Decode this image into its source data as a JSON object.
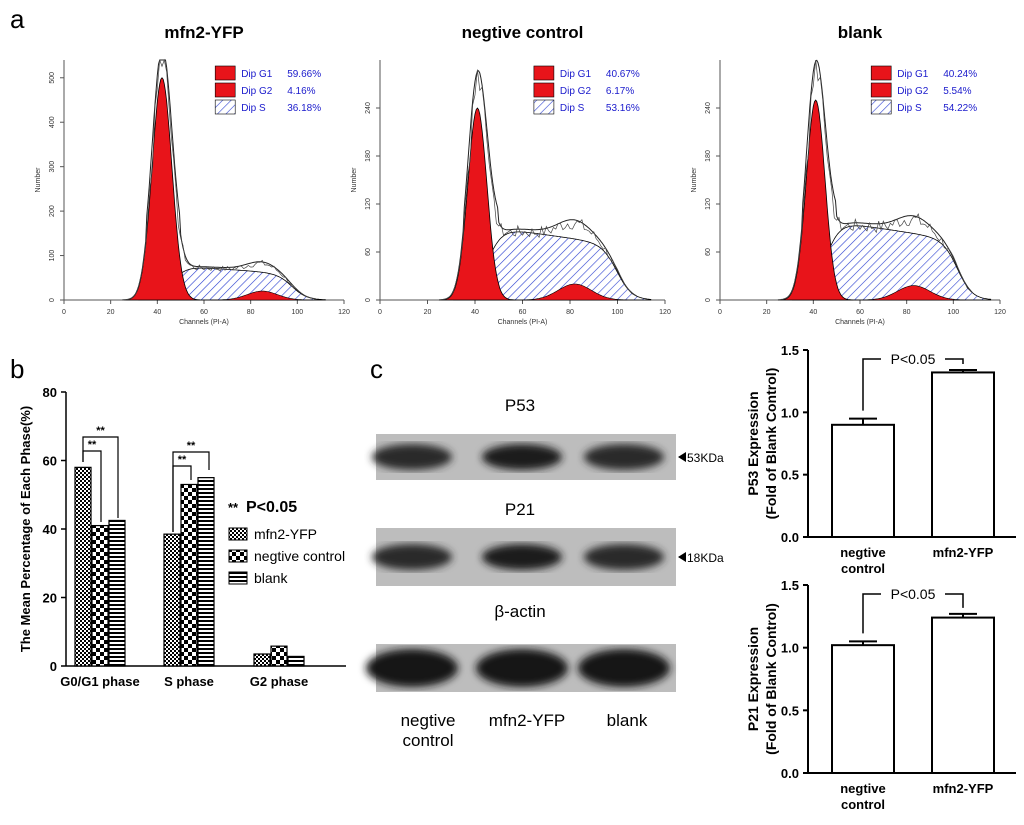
{
  "panel_labels": {
    "a": "a",
    "b": "b",
    "c": "c"
  },
  "chart_data": [
    {
      "type": "histogram",
      "panel": "a1",
      "title": "mfn2-YFP",
      "xlabel": "Channels (PI-A)",
      "ylabel": "Number",
      "xlim": [
        0,
        120
      ],
      "xticks": [
        "0",
        "20",
        "40",
        "60",
        "80",
        "100",
        "120"
      ],
      "ylim": [
        0,
        540
      ],
      "yticks": [
        "0",
        "100",
        "200",
        "300",
        "400",
        "500"
      ],
      "ytick_values": [
        0,
        100,
        200,
        300,
        400,
        500
      ],
      "g1": {
        "mean": 42,
        "sd": 4.2,
        "peak": 500
      },
      "g2": {
        "mean": 85,
        "sd": 6.5,
        "peak": 20
      },
      "s": {
        "start": 46,
        "end": 98,
        "level": 78
      },
      "legend": [
        {
          "label": "Dip G1",
          "value": "59.66%",
          "fill": "#e8141a"
        },
        {
          "label": "Dip G2",
          "value": "4.16%",
          "fill": "#e8141a"
        },
        {
          "label": "Dip S",
          "value": "36.18%",
          "fill": "hatch"
        }
      ]
    },
    {
      "type": "histogram",
      "panel": "a2",
      "title": "negtive control",
      "xlabel": "Channels (PI-A)",
      "ylabel": "Number",
      "xlim": [
        0,
        120
      ],
      "xticks": [
        "0",
        "20",
        "40",
        "60",
        "80",
        "100",
        "120"
      ],
      "ylim": [
        0,
        300
      ],
      "yticks": [
        "0",
        "60",
        "120",
        "180",
        "240"
      ],
      "ytick_values": [
        0,
        60,
        120,
        180,
        240
      ],
      "g1": {
        "mean": 41,
        "sd": 4.0,
        "peak": 240
      },
      "g2": {
        "mean": 82,
        "sd": 7.0,
        "peak": 20
      },
      "s": {
        "start": 45,
        "end": 100,
        "level": 92
      },
      "legend": [
        {
          "label": "Dip G1",
          "value": "40.67%",
          "fill": "#e8141a"
        },
        {
          "label": "Dip G2",
          "value": "6.17%",
          "fill": "#e8141a"
        },
        {
          "label": "Dip S",
          "value": "53.16%",
          "fill": "hatch"
        }
      ]
    },
    {
      "type": "histogram",
      "panel": "a3",
      "title": "blank",
      "xlabel": "Channels (PI-A)",
      "ylabel": "Number",
      "xlim": [
        0,
        120
      ],
      "xticks": [
        "0",
        "20",
        "40",
        "60",
        "80",
        "100",
        "120"
      ],
      "ylim": [
        0,
        300
      ],
      "yticks": [
        "0",
        "60",
        "120",
        "180",
        "240"
      ],
      "ytick_values": [
        0,
        60,
        120,
        180,
        240
      ],
      "g1": {
        "mean": 41,
        "sd": 4.0,
        "peak": 250
      },
      "g2": {
        "mean": 83,
        "sd": 7.0,
        "peak": 18
      },
      "s": {
        "start": 45,
        "end": 102,
        "level": 100
      },
      "legend": [
        {
          "label": "Dip G1",
          "value": "40.24%",
          "fill": "#e8141a"
        },
        {
          "label": "Dip G2",
          "value": "5.54%",
          "fill": "#e8141a"
        },
        {
          "label": "Dip S",
          "value": "54.22%",
          "fill": "hatch"
        }
      ]
    },
    {
      "type": "bar",
      "panel": "b",
      "ylabel": "The Mean Percentage of Each Phase(%)",
      "ylim": [
        0,
        80
      ],
      "yticks": [
        "0",
        "20",
        "40",
        "60",
        "80"
      ],
      "ytick_values": [
        0,
        20,
        40,
        60,
        80
      ],
      "categories": [
        "G0/G1 phase",
        "S phase",
        "G2 phase"
      ],
      "series": [
        {
          "name": "mfn2-YFP",
          "values": [
            58,
            38.5,
            3.5
          ]
        },
        {
          "name": "negtive control",
          "values": [
            41,
            53,
            5.8
          ]
        },
        {
          "name": "blank",
          "values": [
            42.5,
            55,
            2.8
          ]
        }
      ],
      "significance": "**",
      "legend_note": {
        "marker": "**",
        "text": "P<0.05"
      }
    },
    {
      "type": "bar",
      "panel": "c-top",
      "ylabel": "P53 Expression",
      "ylabel2": "(Fold of Blank Control)",
      "ylim": [
        0,
        1.5
      ],
      "yticks": [
        "0.0",
        "0.5",
        "1.0",
        "1.5"
      ],
      "ytick_values": [
        0,
        0.5,
        1.0,
        1.5
      ],
      "categories": [
        [
          "negtive",
          "control"
        ],
        [
          "mfn2-YFP"
        ]
      ],
      "values": [
        0.9,
        1.32
      ],
      "errors": [
        0.05,
        0.02
      ],
      "annotation": "P<0.05"
    },
    {
      "type": "bar",
      "panel": "c-bottom",
      "ylabel": "P21 Expression",
      "ylabel2": "(Fold of Blank Control)",
      "ylim": [
        0,
        1.5
      ],
      "yticks": [
        "0.0",
        "0.5",
        "1.0",
        "1.5"
      ],
      "ytick_values": [
        0,
        0.5,
        1.0,
        1.5
      ],
      "categories": [
        [
          "negtive",
          "control"
        ],
        [
          "mfn2-YFP"
        ]
      ],
      "values": [
        1.02,
        1.24
      ],
      "errors": [
        0.03,
        0.03
      ],
      "annotation": "P<0.05"
    }
  ],
  "western_blot": {
    "bands": [
      {
        "name": "P53",
        "size": "53KDa"
      },
      {
        "name": "P21",
        "size": "18KDa"
      },
      {
        "name": "β-actin",
        "size": ""
      }
    ],
    "lanes": [
      [
        "negtive",
        "control"
      ],
      [
        "mfn2-YFP"
      ],
      [
        "blank"
      ]
    ]
  }
}
